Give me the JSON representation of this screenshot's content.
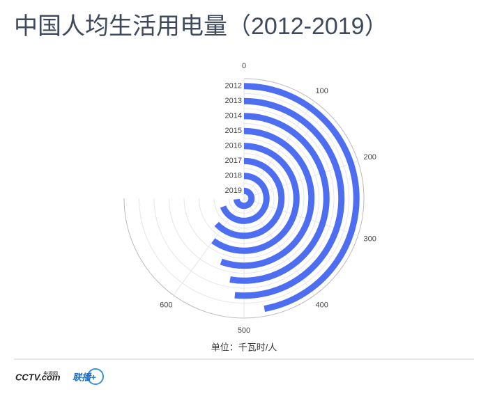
{
  "chart_data": {
    "type": "polar-bar",
    "title": "中国人均生活用电量（2012-2019）",
    "categories": [
      "2012",
      "2013",
      "2014",
      "2015",
      "2016",
      "2017",
      "2018",
      "2019"
    ],
    "values": [
      471,
      515,
      527,
      555,
      600,
      630,
      690,
      730
    ],
    "color": "#4e6ef2",
    "alim": [
      0,
      750
    ],
    "aticks": [
      0,
      100,
      200,
      300,
      400,
      500,
      600
    ],
    "unit_label": "单位：千瓦时/人",
    "grid": true
  },
  "footer": {
    "logo_main": "CCTV.com",
    "logo_sub": "央视网",
    "logo_app": "联播+"
  }
}
